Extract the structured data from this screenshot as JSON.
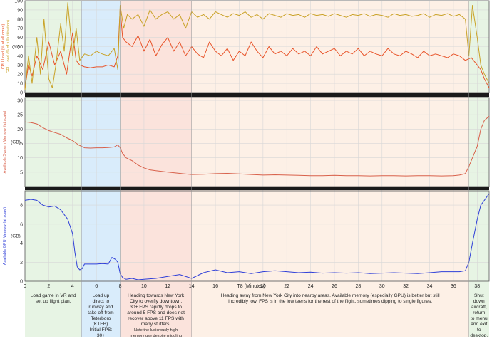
{
  "colors": {
    "cpu": "#e8542a",
    "gpu_load": "#c9a227",
    "system_memory": "#d8604a",
    "gpu_memory": "#2f3fd8",
    "phase_green": "#e7f4e4",
    "phase_blue": "#d9ecfb",
    "phase_red": "#fbe3dc",
    "phase_peach": "#fdf0e6",
    "grid": "#d7d7d7"
  },
  "chart_data": {
    "type": "line",
    "x_axis": {
      "label": "T8 (Minutes)",
      "range": [
        0,
        39
      ],
      "ticks": [
        0,
        2,
        4,
        6,
        8,
        10,
        12,
        14,
        16,
        18,
        20,
        22,
        24,
        26,
        28,
        30,
        32,
        34,
        36,
        38
      ]
    },
    "panels": [
      {
        "id": "load",
        "ylabels": [
          "CPU Load (% of all cores)",
          "GPU Load (% of full utilisation)"
        ],
        "unit": "(%)",
        "ylim": [
          0,
          100
        ],
        "yticks": [
          0,
          10,
          20,
          30,
          40,
          50,
          60,
          70,
          80,
          90,
          100
        ],
        "series": [
          {
            "key": "cpu",
            "x": [
              0,
              0.3,
              0.6,
              1,
              1.5,
              2,
              2.5,
              3,
              3.5,
              4,
              4.3,
              4.6,
              5,
              5.5,
              6,
              6.5,
              7,
              7.5,
              7.8,
              8,
              8.2,
              8.5,
              9,
              9.5,
              10,
              10.5,
              11,
              11.5,
              12,
              12.5,
              13,
              13.5,
              14,
              14.5,
              15,
              15.5,
              16,
              16.5,
              17,
              17.5,
              18,
              18.5,
              19,
              19.5,
              20,
              20.5,
              21,
              21.5,
              22,
              22.5,
              23,
              23.5,
              24,
              24.5,
              25,
              25.5,
              26,
              26.5,
              27,
              27.5,
              28,
              28.5,
              29,
              29.5,
              30,
              30.5,
              31,
              31.5,
              32,
              32.5,
              33,
              33.5,
              34,
              34.5,
              35,
              35.5,
              36,
              36.5,
              37,
              37.5,
              38,
              38.3,
              38.6,
              39
            ],
            "y": [
              5,
              30,
              18,
              40,
              25,
              55,
              30,
              45,
              20,
              65,
              35,
              30,
              28,
              27,
              28,
              28,
              30,
              28,
              40,
              92,
              60,
              55,
              50,
              62,
              45,
              58,
              40,
              52,
              60,
              45,
              55,
              40,
              50,
              42,
              38,
              55,
              45,
              40,
              48,
              35,
              45,
              40,
              55,
              45,
              38,
              50,
              42,
              45,
              40,
              48,
              42,
              45,
              40,
              50,
              42,
              45,
              48,
              40,
              45,
              42,
              48,
              40,
              45,
              42,
              40,
              48,
              42,
              40,
              45,
              42,
              38,
              45,
              40,
              42,
              40,
              38,
              42,
              40,
              35,
              38,
              30,
              25,
              15,
              5
            ]
          },
          {
            "key": "gpu_load",
            "x": [
              0,
              0.3,
              0.6,
              1,
              1.3,
              1.6,
              2,
              2.3,
              2.6,
              3,
              3.3,
              3.6,
              4,
              4.3,
              4.6,
              5,
              5.5,
              6,
              6.5,
              7,
              7.5,
              7.8,
              8,
              8.3,
              8.6,
              9,
              9.5,
              10,
              10.5,
              11,
              11.5,
              12,
              12.5,
              13,
              13.5,
              14,
              14.5,
              15,
              15.5,
              16,
              16.5,
              17,
              17.5,
              18,
              18.5,
              19,
              19.5,
              20,
              20.5,
              21,
              21.5,
              22,
              22.5,
              23,
              23.5,
              24,
              24.5,
              25,
              25.5,
              26,
              26.5,
              27,
              27.5,
              28,
              28.5,
              29,
              29.5,
              30,
              30.5,
              31,
              31.5,
              32,
              32.5,
              33,
              33.5,
              34,
              34.5,
              35,
              35.5,
              36,
              36.5,
              37,
              37.3,
              37.6,
              38,
              38.3,
              38.6,
              39
            ],
            "y": [
              3,
              40,
              10,
              60,
              20,
              80,
              15,
              5,
              30,
              75,
              45,
              98,
              40,
              70,
              35,
              42,
              40,
              45,
              42,
              40,
              48,
              25,
              95,
              70,
              85,
              80,
              85,
              72,
              90,
              80,
              85,
              88,
              80,
              85,
              70,
              88,
              82,
              85,
              80,
              88,
              85,
              82,
              86,
              84,
              88,
              82,
              85,
              80,
              86,
              84,
              82,
              86,
              84,
              85,
              82,
              86,
              84,
              85,
              83,
              86,
              84,
              82,
              85,
              84,
              86,
              83,
              85,
              84,
              82,
              86,
              84,
              85,
              83,
              84,
              86,
              82,
              85,
              84,
              86,
              83,
              85,
              80,
              40,
              95,
              60,
              30,
              20,
              10
            ]
          }
        ]
      },
      {
        "id": "system_memory",
        "ylabel": "Available System Memory (at scale)",
        "unit": "(GB)",
        "ylim": [
          0,
          31
        ],
        "yticks": [
          5,
          10,
          15,
          20,
          25,
          30
        ],
        "series": [
          {
            "key": "system_memory",
            "x": [
              0,
              0.5,
              1,
              1.5,
              2,
              2.5,
              3,
              3.5,
              4,
              4.5,
              5,
              5.5,
              6,
              6.5,
              7,
              7.5,
              7.8,
              8,
              8.2,
              8.5,
              9,
              9.5,
              10,
              10.5,
              11,
              12,
              13,
              14,
              15,
              16,
              17,
              18,
              19,
              20,
              21,
              22,
              23,
              24,
              25,
              26,
              27,
              28,
              29,
              30,
              31,
              32,
              33,
              34,
              35,
              36,
              36.5,
              37,
              37.3,
              37.6,
              38,
              38.3,
              38.6,
              39
            ],
            "y": [
              22.5,
              22.3,
              21.8,
              20.5,
              19.5,
              18.8,
              18.2,
              17.0,
              16.0,
              14.5,
              13.5,
              13.4,
              13.5,
              13.5,
              13.6,
              13.8,
              14.5,
              13.5,
              11.5,
              10.0,
              9.0,
              7.5,
              6.5,
              5.8,
              5.5,
              5.0,
              4.6,
              4.2,
              4.3,
              4.5,
              4.6,
              4.4,
              4.2,
              4.0,
              4.1,
              4.0,
              3.9,
              3.8,
              3.8,
              3.9,
              3.8,
              3.8,
              3.7,
              3.8,
              3.8,
              3.7,
              3.8,
              3.8,
              3.7,
              3.8,
              4.0,
              4.5,
              7.0,
              10.0,
              14.0,
              20.0,
              23.0,
              24.5
            ]
          }
        ]
      },
      {
        "id": "gpu_memory",
        "ylabel": "Available GPU Memory (at scale)",
        "unit": "(GB)",
        "ylim": [
          0,
          9.5
        ],
        "yticks": [
          0,
          2,
          4,
          6,
          8
        ],
        "series": [
          {
            "key": "gpu_memory",
            "x": [
              0,
              0.5,
              1,
              1.5,
              2,
              2.5,
              3,
              3.3,
              3.6,
              4,
              4.2,
              4.4,
              4.6,
              4.8,
              5,
              5.5,
              6,
              6.5,
              7,
              7.3,
              7.6,
              7.8,
              8,
              8.2,
              8.5,
              9,
              9.5,
              10,
              11,
              12,
              13,
              14,
              15,
              16,
              17,
              18,
              19,
              20,
              21,
              22,
              23,
              24,
              25,
              26,
              27,
              28,
              29,
              30,
              31,
              32,
              33,
              34,
              35,
              36,
              36.5,
              37,
              37.3,
              37.6,
              38,
              38.3,
              38.6,
              39
            ],
            "y": [
              8.5,
              8.6,
              8.5,
              8.0,
              7.8,
              7.9,
              7.5,
              7.0,
              6.5,
              5.0,
              3.0,
              1.5,
              1.2,
              1.3,
              1.8,
              1.8,
              1.8,
              1.85,
              1.8,
              2.5,
              2.3,
              2.0,
              0.8,
              0.4,
              0.2,
              0.3,
              0.15,
              0.2,
              0.3,
              0.5,
              0.7,
              0.3,
              0.9,
              1.2,
              0.9,
              1.0,
              0.8,
              1.0,
              1.1,
              1.0,
              0.9,
              0.95,
              0.85,
              0.9,
              0.85,
              0.9,
              0.8,
              0.85,
              0.9,
              0.85,
              0.8,
              0.9,
              1.0,
              1.0,
              1.0,
              1.1,
              2.0,
              4.0,
              6.5,
              8.0,
              8.5,
              9.2
            ]
          }
        ]
      }
    ],
    "phases": [
      {
        "start": 0,
        "end": 4.75,
        "fill": "phase_green",
        "text": "Load game in VR and set up flight plan."
      },
      {
        "start": 4.75,
        "end": 8,
        "fill": "phase_blue",
        "text": "Load up direct to runway and take off from Teterboro (KTEB). Initial FPS: 30+"
      },
      {
        "start": 8,
        "end": 14,
        "fill": "phase_red",
        "text": "Heading towards New York City to overfly downtown. 30+ FPS rapidly drops to around 5 FPS and does not recover above 11 FPS with many stutters.",
        "note": "Note the ludicrously high memory use despite middling CPU and GPU load."
      },
      {
        "start": 14,
        "end": 37.3,
        "fill": "phase_peach",
        "text": "Heading away from New York City into nearby areas. Available memory (especially GPU) is better but still incredibly low. FPS is in the low teens for the rest of the flight, sometimes dipping to single figures."
      },
      {
        "start": 37.3,
        "end": 39,
        "fill": "phase_green",
        "text": "Shut down aircraft, return to menu and exit to desktop."
      }
    ]
  }
}
